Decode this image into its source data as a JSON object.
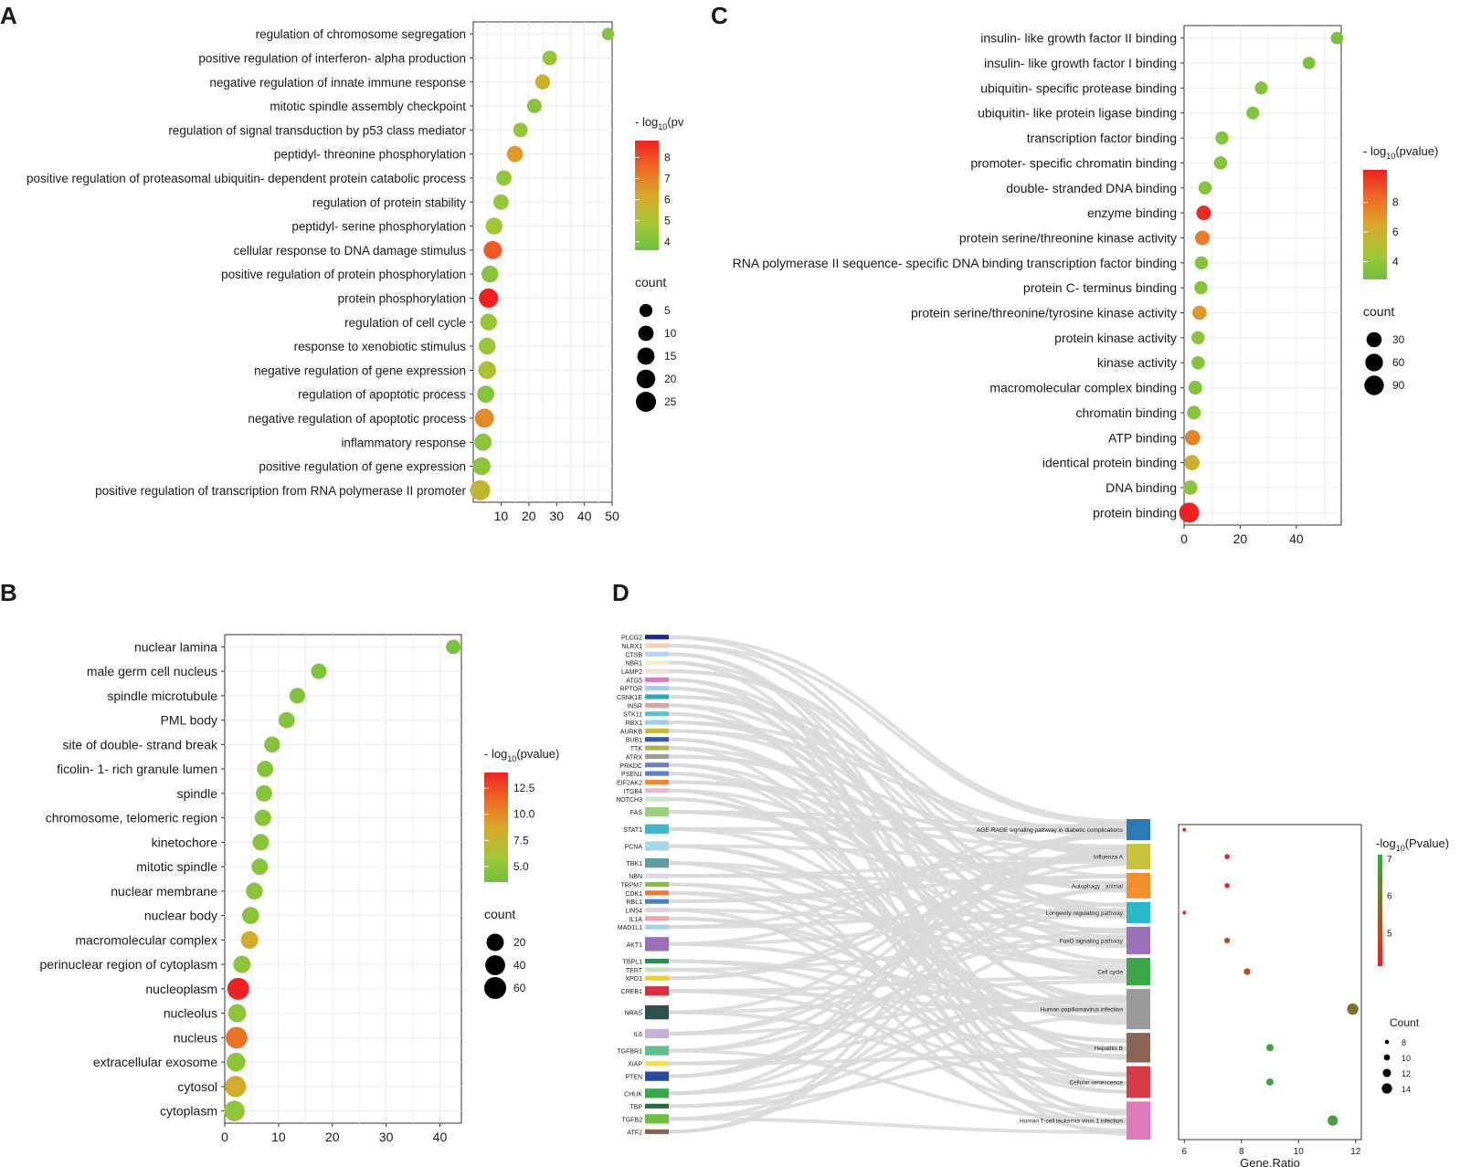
{
  "figure": {
    "panel_labels": [
      "A",
      "B",
      "C",
      "D"
    ]
  },
  "chart_data": [
    {
      "panel": "A",
      "type": "scatter",
      "xlabel": "",
      "xlim": [
        0,
        50
      ],
      "xticks": [
        10,
        20,
        30,
        40,
        50
      ],
      "color_legend_title": "- log10(pv",
      "color_legend_title_parts": [
        "- log",
        "10",
        "(pv"
      ],
      "color_range": [
        3.6,
        8.8
      ],
      "color_ticks": [
        8,
        7,
        6,
        5,
        4
      ],
      "size_legend_title": "count",
      "size_ticks": [
        5,
        10,
        15,
        20,
        25
      ],
      "categories": [
        "regulation of chromosome segregation",
        "positive regulation of interferon- alpha production",
        "negative regulation of innate immune response",
        "mitotic spindle assembly checkpoint",
        "regulation of signal transduction by p53 class mediator",
        "peptidyl- threonine phosphorylation",
        "positive regulation of proteasomal ubiquitin- dependent protein catabolic process",
        "regulation of protein stability",
        "peptidyl- serine phosphorylation",
        "cellular response to DNA damage stimulus",
        "positive regulation of protein phosphorylation",
        "protein phosphorylation",
        "regulation of cell cycle",
        "response to xenobiotic stimulus",
        "negative regulation of gene expression",
        "regulation of apoptotic process",
        "negative regulation of apoptotic process",
        "inflammatory response",
        "positive regulation of gene expression",
        "positive regulation of transcription from RNA polymerase II promoter"
      ],
      "x": [
        48.5,
        27.5,
        25,
        22,
        17,
        15,
        11,
        10,
        7.5,
        7,
        6,
        5.5,
        5.5,
        5,
        5,
        4.5,
        4,
        3.5,
        3,
        2.5
      ],
      "size": [
        4,
        8,
        9,
        8,
        8,
        12,
        10,
        10,
        14,
        18,
        14,
        22,
        14,
        14,
        17,
        15,
        21,
        15,
        17,
        25
      ],
      "color": [
        4,
        4.5,
        5.8,
        4.2,
        4.5,
        6.5,
        4.5,
        4.5,
        4.8,
        7.8,
        4.2,
        8.8,
        4.6,
        4.6,
        5.1,
        4.1,
        6.8,
        4.3,
        4.3,
        5.6
      ]
    },
    {
      "panel": "B",
      "type": "scatter",
      "xlabel": "",
      "xlim": [
        0,
        44
      ],
      "xticks": [
        0,
        10,
        20,
        30,
        40
      ],
      "color_legend_title": "- log10(pvalue)",
      "color_legend_title_parts": [
        "- log",
        "10",
        "(pvalue)"
      ],
      "color_range": [
        3.5,
        14
      ],
      "color_ticks": [
        12.5,
        10.0,
        7.5,
        5.0
      ],
      "size_legend_title": "count",
      "size_ticks": [
        20,
        40,
        60
      ],
      "categories": [
        "nuclear lamina",
        "male germ cell nucleus",
        "spindle microtubule",
        "PML body",
        "site of double- strand break",
        "ficolin- 1- rich granule lumen",
        "spindle",
        "chromosome, telomeric region",
        "kinetochore",
        "mitotic spindle",
        "nuclear membrane",
        "nuclear body",
        "macromolecular complex",
        "perinuclear region of cytoplasm",
        "nucleoplasm",
        "nucleolus",
        "nucleus",
        "extracellular exosome",
        "cytosol",
        "cytoplasm"
      ],
      "x": [
        42.5,
        17.5,
        13.5,
        11.5,
        8.8,
        7.5,
        7.3,
        7.1,
        6.7,
        6.5,
        5.5,
        4.8,
        4.6,
        3.2,
        2.5,
        2.3,
        2.2,
        2.1,
        2.0,
        1.8
      ],
      "size": [
        6,
        10,
        11,
        13,
        12,
        14,
        14,
        15,
        15,
        14,
        17,
        18,
        21,
        20,
        58,
        25,
        55,
        30,
        50,
        45
      ],
      "color": [
        4,
        4.2,
        4.4,
        4.5,
        4.5,
        4.6,
        4.6,
        4.7,
        4.7,
        4.7,
        4.8,
        4.8,
        8.5,
        5,
        14,
        5,
        11,
        5,
        8.5,
        5.2
      ]
    },
    {
      "panel": "C",
      "type": "scatter",
      "xlabel": "",
      "xlim": [
        0,
        56
      ],
      "xticks": [
        0,
        20,
        40
      ],
      "color_legend_title": "- log10(pvalue)",
      "color_legend_title_parts": [
        "- log",
        "10",
        "(pvalue)"
      ],
      "color_range": [
        2.8,
        10.2
      ],
      "color_ticks": [
        8,
        6,
        4
      ],
      "size_legend_title": "count",
      "size_ticks": [
        30,
        60,
        90
      ],
      "categories": [
        "insulin- like growth factor II binding",
        "insulin- like growth factor I binding",
        "ubiquitin- specific protease binding",
        "ubiquitin- like protein ligase binding",
        "transcription factor binding",
        "promoter- specific chromatin binding",
        "double- stranded DNA binding",
        "enzyme binding",
        "protein serine/threonine kinase activity",
        "RNA polymerase II sequence- specific DNA binding transcription factor binding",
        "protein C- terminus binding",
        "protein serine/threonine/tyrosine kinase activity",
        "protein kinase activity",
        "kinase activity",
        "macromolecular complex binding",
        "chromatin binding",
        "ATP binding",
        "identical protein binding",
        "DNA binding",
        "protein binding"
      ],
      "x": [
        54.5,
        44.5,
        27.5,
        24.5,
        13.5,
        13,
        7.5,
        7,
        6.5,
        6.2,
        6,
        5.5,
        5,
        5,
        4,
        3.5,
        3,
        2.8,
        2.2,
        1.8
      ],
      "size": [
        10,
        10,
        12,
        12,
        14,
        14,
        14,
        25,
        25,
        14,
        14,
        22,
        14,
        14,
        18,
        18,
        32,
        32,
        24,
        100
      ],
      "color": [
        3.2,
        3.2,
        3.5,
        3.5,
        3.5,
        3.5,
        3.5,
        10,
        7.8,
        3.5,
        3.5,
        7,
        3.8,
        3.5,
        3.5,
        3.5,
        7.5,
        6,
        3.8,
        10.2
      ]
    },
    {
      "panel": "D",
      "type": "scatter",
      "subtype": "sankey-dot",
      "xlabel": "Gene.Ratio",
      "xlim": [
        5.8,
        12.2
      ],
      "xticks": [
        6,
        8,
        10,
        12
      ],
      "color_legend_title": "-log10(Pvalue)",
      "color_legend_title_parts": [
        "-log",
        "10",
        "(Pvalue)"
      ],
      "color_range": [
        4.1,
        7.1
      ],
      "color_ticks": [
        7,
        6,
        5
      ],
      "size_legend_title": "Count",
      "size_ticks": [
        8,
        10,
        12,
        14
      ],
      "genes": [
        "PLCG2",
        "NLRX1",
        "CTSB",
        "NBR1",
        "LAMP2",
        "ATG5",
        "RPTOR",
        "CSNK1E",
        "INSR",
        "STK11",
        "RBX1",
        "AURKB",
        "BUB1",
        "TTK",
        "ATRX",
        "PRKDC",
        "PSEN1",
        "EIF2AK2",
        "ITGB4",
        "NOTCH3",
        "FAS",
        "STAT1",
        "PCNA",
        "TBK1",
        "NBN",
        "TRPM7",
        "CDK1",
        "RBL1",
        "LIN54",
        "IL1A",
        "MAD1L1",
        "AKT1",
        "TBPL1",
        "TERT",
        "XPO1",
        "CREB1",
        "NRAS",
        "IL6",
        "TGFBR1",
        "XIAP",
        "PTEN",
        "CHUK",
        "TBP",
        "TGFB2",
        "ATF2"
      ],
      "gene_weights": [
        1,
        1,
        1,
        1,
        1,
        1,
        1,
        1,
        1,
        1,
        1,
        1,
        1,
        1,
        1,
        1,
        1,
        1,
        1,
        1,
        2,
        2,
        2,
        2,
        1,
        1,
        1,
        1,
        1,
        1,
        1,
        3,
        1,
        1,
        1,
        2,
        3,
        2,
        2,
        1,
        2,
        2,
        1,
        2,
        1
      ],
      "gene_colors": [
        "#1b2f8c",
        "#f2d3b0",
        "#b4d7ee",
        "#f7efc6",
        "#f7dede",
        "#d77fb8",
        "#a8cce6",
        "#2ba7b8",
        "#d8a6a6",
        "#57c4d6",
        "#9bd0e8",
        "#bcbf3e",
        "#3a5aa8",
        "#b8b04a",
        "#9c9c9c",
        "#6a7fb8",
        "#5f7fc8",
        "#f08a3b",
        "#e8b8d0",
        "#c8e8c8",
        "#98d080",
        "#3cb8c8",
        "#a8d8e8",
        "#5f9ea0",
        "#d8d8e8",
        "#8fb850",
        "#f07830",
        "#4a7fc8",
        "#d8d8d8",
        "#f4a3a8",
        "#a8d0e8",
        "#9b6fb8",
        "#2e8b57",
        "#c8e0c0",
        "#f0d020",
        "#d83040",
        "#2f4f4f",
        "#c8b0d8",
        "#5fbf8f",
        "#f0e060",
        "#2a4aa0",
        "#3aa848",
        "#1f6f3f",
        "#70c040",
        "#8f5f4f"
      ],
      "pathways": [
        "AGE-RAGE signaling pathway in diabetic complications",
        "Influenza A",
        "Autophagy - animal",
        "Longevity regulating pathway",
        "FoxO signaling pathway",
        "Cell cycle",
        "Human papillomavirus infection",
        "Hepatitis B",
        "Cellular senescence",
        "Human T-cell leukemia virus 1 infection"
      ],
      "pathway_weights": [
        1,
        1.2,
        1.2,
        1,
        1.3,
        1.3,
        1.9,
        1.4,
        1.5,
        1.8
      ],
      "pathway_colors": [
        "#2c7bb6",
        "#c8c43a",
        "#f28e2b",
        "#2bb7c8",
        "#9b72b8",
        "#3aa848",
        "#9a9a9a",
        "#8c6456",
        "#d63c48",
        "#e079b8"
      ],
      "x": [
        6,
        7.5,
        7.5,
        6,
        7.5,
        8.2,
        11.9,
        9,
        9,
        11.2
      ],
      "size": [
        7.5,
        9,
        9,
        7.5,
        9.5,
        10.5,
        15,
        11,
        11,
        14
      ],
      "color": [
        4.1,
        4.2,
        4.2,
        4.1,
        4.8,
        5,
        5.8,
        6.9,
        6.9,
        6.8
      ]
    }
  ]
}
